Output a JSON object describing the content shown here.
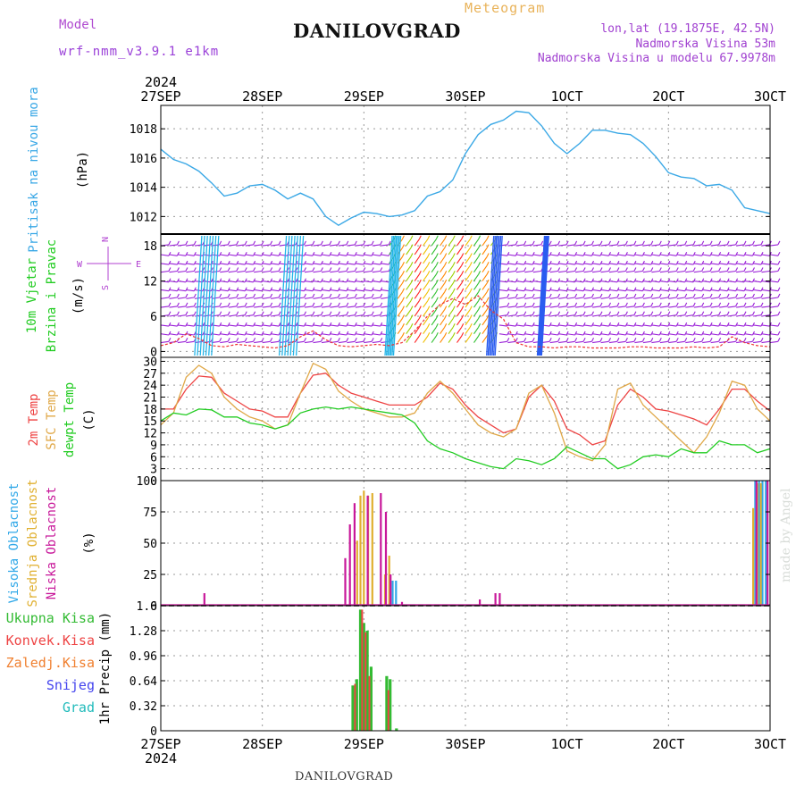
{
  "header": {
    "model_label": "Model",
    "model_name": "wrf-nmm_v3.9.1 e1km",
    "station": "DANILOVGRAD",
    "title": "Meteogram",
    "lonlat": "lon,lat (19.1875E, 42.5N)",
    "elevation": "Nadmorska Visina 53m",
    "model_elevation": "Nadmorska Visina u modelu 67.9978m"
  },
  "footer": {
    "station": "DANILOVGRAD",
    "credit": "made by Angel"
  },
  "time_axis": {
    "year": "2024",
    "tick_labels": [
      "27SEP",
      "28SEP",
      "29SEP",
      "30SEP",
      "1OCT",
      "2OCT",
      "3OCT"
    ],
    "hours": 144
  },
  "colors": {
    "pressure": "#3aa8e6",
    "temp2m": "#ee4444",
    "sfc_temp": "#e0a848",
    "dewpt": "#22cc22",
    "cloud_high": "#30a8e8",
    "cloud_mid": "#e0b030",
    "cloud_low": "#c8189a",
    "precip_total": "#33bb33",
    "precip_conv": "#ee4444",
    "precip_strat": "#f08030",
    "snow": "#4444ee",
    "hail": "#22bbbb",
    "wind_barbs": "#9a20d8"
  },
  "chart_data": [
    {
      "type": "line",
      "panel": "pressure",
      "ylabel_1": "Pritisak na nivou mora",
      "ylabel_2": "(hPa)",
      "ylim": [
        1010.8,
        1019.6
      ],
      "yticks": [
        1012,
        1014,
        1016,
        1018
      ],
      "grid": true,
      "x": [
        0,
        3,
        6,
        9,
        12,
        15,
        18,
        21,
        24,
        27,
        30,
        33,
        36,
        39,
        42,
        45,
        48,
        51,
        54,
        57,
        60,
        63,
        66,
        69,
        72,
        75,
        78,
        81,
        84,
        87,
        90,
        93,
        96,
        99,
        102,
        105,
        108,
        111,
        114,
        117,
        120,
        123,
        126,
        129,
        132,
        135,
        138,
        141,
        144
      ],
      "series": [
        {
          "values": [
            1016.6,
            1015.9,
            1015.6,
            1015.1,
            1014.3,
            1013.4,
            1013.6,
            1014.1,
            1014.2,
            1013.8,
            1013.2,
            1013.6,
            1013.2,
            1012.0,
            1011.4,
            1011.9,
            1012.3,
            1012.2,
            1012.0,
            1012.1,
            1012.4,
            1013.4,
            1013.7,
            1014.5,
            1016.3,
            1017.6,
            1018.3,
            1018.6,
            1019.2,
            1019.1,
            1018.2,
            1017.0,
            1016.3,
            1017.0,
            1017.9,
            1017.9,
            1017.7,
            1017.6,
            1017.0,
            1016.1,
            1015.0,
            1014.7,
            1014.6,
            1014.1,
            1014.2,
            1013.8,
            1012.6,
            1012.4,
            1012.2
          ]
        }
      ]
    },
    {
      "type": "barbs",
      "panel": "wind",
      "ylabel_1": "10m Vjetar",
      "ylabel_2": "Brzina i Pravac",
      "ylabel_3": "(m/s)",
      "compass": {
        "n": "N",
        "s": "S",
        "w": "W",
        "e": "E"
      },
      "ylim": [
        -1,
        20
      ],
      "yticks": [
        0,
        6,
        12,
        18
      ],
      "grid": true,
      "x": [
        0,
        3,
        6,
        9,
        12,
        15,
        18,
        21,
        24,
        27,
        30,
        33,
        36,
        39,
        42,
        45,
        48,
        51,
        54,
        57,
        60,
        63,
        66,
        69,
        72,
        75,
        78,
        81,
        84,
        87,
        90,
        93,
        96,
        99,
        102,
        105,
        108,
        111,
        114,
        117,
        120,
        123,
        126,
        129,
        132,
        135,
        138,
        141,
        144
      ],
      "series": [
        {
          "name": "speed",
          "values": [
            1.0,
            1.5,
            3.0,
            2.2,
            1.0,
            0.8,
            1.2,
            1.0,
            0.8,
            0.6,
            1.0,
            2.5,
            3.5,
            2.0,
            1.0,
            0.8,
            1.0,
            1.2,
            1.0,
            1.5,
            3.5,
            6.0,
            8.0,
            9.0,
            8.0,
            9.5,
            7.0,
            5.5,
            1.5,
            0.8,
            0.8,
            0.6,
            0.8,
            0.8,
            0.6,
            0.6,
            0.6,
            0.8,
            0.8,
            0.6,
            0.6,
            0.6,
            0.8,
            0.6,
            0.8,
            2.5,
            1.5,
            1.0,
            0.8
          ]
        }
      ]
    },
    {
      "type": "line",
      "panel": "temperature",
      "ylabel_1": "2m Temp",
      "ylabel_2": "SFC Temp",
      "ylabel_3": "dewpt Temp",
      "ylabel_4": "(C)",
      "ylim": [
        0,
        31
      ],
      "yticks": [
        0,
        3,
        6,
        9,
        12,
        15,
        18,
        21,
        24,
        27,
        30
      ],
      "grid": true,
      "x": [
        0,
        3,
        6,
        9,
        12,
        15,
        18,
        21,
        24,
        27,
        30,
        33,
        36,
        39,
        42,
        45,
        48,
        51,
        54,
        57,
        60,
        63,
        66,
        69,
        72,
        75,
        78,
        81,
        84,
        87,
        90,
        93,
        96,
        99,
        102,
        105,
        108,
        111,
        114,
        117,
        120,
        123,
        126,
        129,
        132,
        135,
        138,
        141,
        144
      ],
      "series": [
        {
          "name": "2m Temp",
          "values": [
            18,
            18,
            23,
            26.3,
            26,
            22,
            20,
            18,
            17.5,
            16,
            16,
            22,
            26.5,
            27,
            24,
            22,
            21,
            20,
            19,
            19,
            19,
            21,
            24.5,
            23,
            19,
            16,
            14,
            12,
            13,
            21,
            24,
            20,
            13,
            11.5,
            9,
            10,
            19,
            23,
            21,
            18,
            17.5,
            16.5,
            15.5,
            14,
            18,
            23,
            23,
            20,
            17.5
          ]
        },
        {
          "name": "SFC Temp",
          "values": [
            14,
            17,
            26,
            29,
            27,
            21,
            18,
            16,
            15,
            13,
            14,
            22,
            29.5,
            28,
            22.5,
            20,
            18,
            17,
            16,
            16,
            17,
            22,
            25,
            22,
            18,
            14,
            12,
            11,
            13,
            22,
            24,
            17,
            7.5,
            6,
            5,
            9,
            23,
            24.5,
            19,
            16,
            13,
            10,
            7,
            11,
            17,
            25,
            24,
            18,
            15
          ]
        },
        {
          "name": "dewpt Temp",
          "values": [
            15,
            17,
            16.5,
            18,
            17.8,
            16,
            16,
            14.5,
            14,
            13,
            14,
            17,
            18,
            18.5,
            18,
            18.5,
            18,
            17.5,
            17,
            16.5,
            14.5,
            10,
            8,
            7,
            5.5,
            4.5,
            3.5,
            3,
            5.5,
            5,
            4,
            5.5,
            8.5,
            7,
            5.5,
            5.5,
            3,
            4,
            6,
            6.5,
            6,
            8,
            7,
            7,
            10,
            9,
            9,
            7,
            8
          ]
        }
      ]
    },
    {
      "type": "bar",
      "panel": "cloud",
      "ylabel_1": "Visoka Oblacnost",
      "ylabel_2": "Srednja Oblacnost",
      "ylabel_3": "Niska Oblacnost",
      "ylabel_4": "(%)",
      "ylim": [
        0,
        100
      ],
      "yticks": [
        0,
        25,
        50,
        75,
        100
      ],
      "grid": true,
      "series": [
        {
          "name": "Visoka Oblacnost",
          "points": [
            [
              54.8,
              20
            ],
            [
              55.6,
              20
            ],
            [
              140.5,
              100
            ],
            [
              141.4,
              100
            ],
            [
              142.2,
              100
            ],
            [
              143.0,
              100
            ]
          ]
        },
        {
          "name": "Srednja Oblacnost",
          "points": [
            [
              46.4,
              52
            ],
            [
              47.2,
              88
            ],
            [
              48.0,
              92
            ],
            [
              49.0,
              88
            ],
            [
              50.0,
              90
            ],
            [
              53.0,
              25
            ],
            [
              54.0,
              40
            ],
            [
              140.0,
              78
            ],
            [
              141.0,
              98
            ],
            [
              141.8,
              98
            ]
          ]
        },
        {
          "name": "Niska Oblacnost",
          "points": [
            [
              10.3,
              10
            ],
            [
              43.6,
              38
            ],
            [
              44.7,
              65
            ],
            [
              45.8,
              82
            ],
            [
              48.9,
              88
            ],
            [
              52.0,
              90
            ],
            [
              53.2,
              75
            ],
            [
              54.3,
              25
            ],
            [
              57.0,
              3
            ],
            [
              75.4,
              5
            ],
            [
              79.1,
              10
            ],
            [
              80.1,
              10
            ],
            [
              140.8,
              100
            ],
            [
              143.4,
              100
            ]
          ]
        }
      ]
    },
    {
      "type": "bar",
      "panel": "precip",
      "ylabel": "1hr Precip (mm)",
      "legend": [
        "Ukupna Kisa",
        "Konvek.Kisa",
        "Zaledj.Kisa",
        "Snijeg",
        "Grad"
      ],
      "ylim": [
        0,
        1.6
      ],
      "yticks": [
        0,
        0.32,
        0.64,
        0.96,
        1.28,
        1.6
      ],
      "grid": true,
      "series": [
        {
          "name": "Ukupna Kisa",
          "points": [
            [
              45.4,
              0.58
            ],
            [
              46.3,
              0.66
            ],
            [
              47.2,
              1.55
            ],
            [
              48.0,
              1.38
            ],
            [
              48.8,
              1.28
            ],
            [
              49.7,
              0.82
            ],
            [
              53.4,
              0.7
            ],
            [
              54.2,
              0.66
            ],
            [
              55.7,
              0.03
            ]
          ]
        },
        {
          "name": "Konvek.Kisa",
          "points": [
            [
              45.9,
              0.6
            ],
            [
              47.6,
              1.55
            ],
            [
              48.4,
              1.26
            ],
            [
              49.3,
              0.7
            ],
            [
              53.8,
              0.52
            ]
          ]
        }
      ]
    }
  ]
}
